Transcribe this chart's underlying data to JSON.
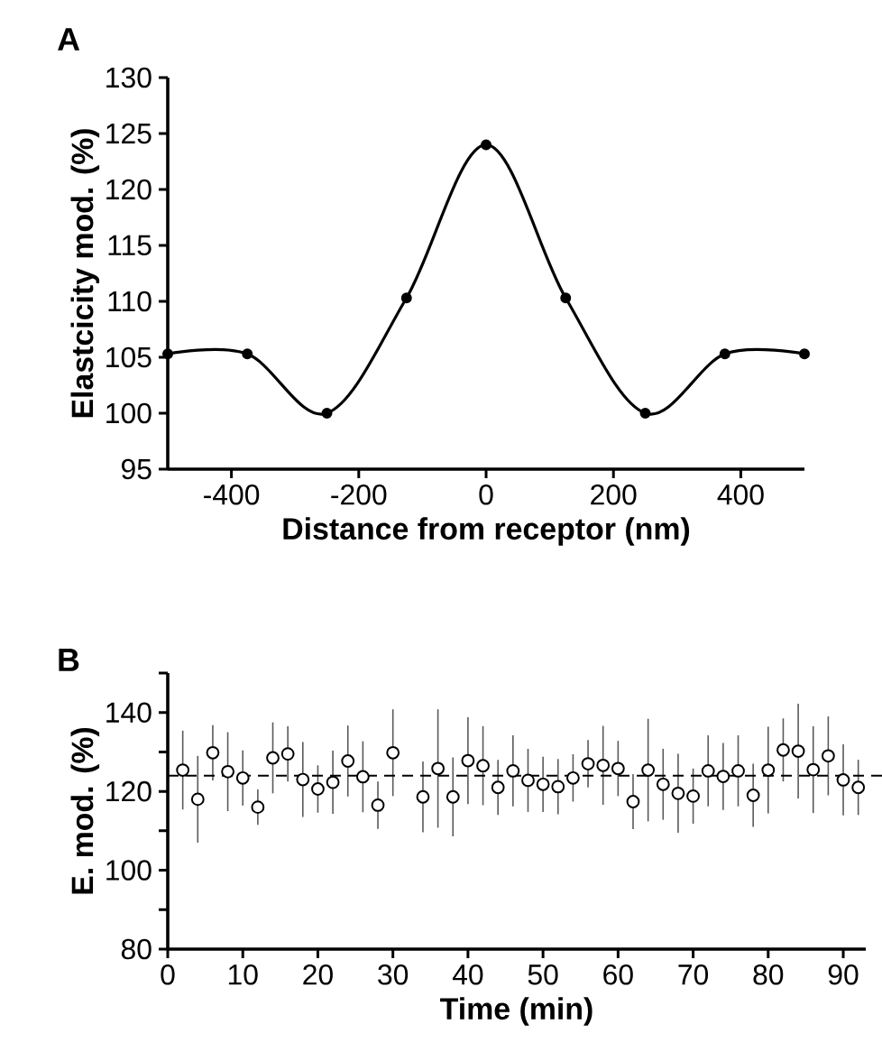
{
  "chart_data": [
    {
      "type": "line",
      "title": "A",
      "xlabel": "Distance from receptor (nm)",
      "ylabel": "Elastcicity mod. (%)",
      "x": [
        -500,
        -375,
        -250,
        -125,
        0,
        125,
        250,
        375,
        500
      ],
      "series": [
        {
          "color": "#000000",
          "values": [
            105.3,
            105.3,
            100,
            110.3,
            124,
            110.3,
            100,
            105.3,
            105.3
          ]
        }
      ],
      "marker": "circle",
      "line_style": "solid",
      "xlim": [
        -500,
        500
      ],
      "xticks": [
        -400,
        -200,
        0,
        200,
        400
      ],
      "ylim": [
        95,
        130
      ],
      "yticks": [
        95,
        100,
        105,
        110,
        115,
        120,
        125,
        130
      ]
    },
    {
      "type": "scatter",
      "title": "B",
      "xlabel": "Time (min)",
      "ylabel": "E. mod. (%)",
      "x": [
        2,
        4,
        6,
        8,
        10,
        12,
        14,
        16,
        18,
        20,
        22,
        24,
        26,
        28,
        30,
        34,
        36,
        38,
        40,
        42,
        44,
        46,
        48,
        50,
        52,
        54,
        56,
        58,
        60,
        62,
        64,
        66,
        68,
        70,
        72,
        74,
        76,
        78,
        80,
        82,
        84,
        86,
        88,
        90,
        92
      ],
      "series": [
        {
          "color": "#000000",
          "values": [
            125.4,
            118,
            129.8,
            125,
            123.4,
            116,
            128.5,
            129.5,
            123,
            120.6,
            122.3,
            127.7,
            123.7,
            116.5,
            129.8,
            118.6,
            125.8,
            118.6,
            127.8,
            126.5,
            121,
            125.2,
            122.8,
            121.8,
            121.2,
            123.4,
            127,
            126.6,
            125.8,
            117.4,
            125.4,
            121.8,
            119.5,
            118.8,
            125.2,
            123.8,
            125.2,
            119,
            125.4,
            130.5,
            130.2,
            125.5,
            129,
            122.9,
            121
          ],
          "errors": [
            10,
            11,
            7,
            10,
            7,
            4.5,
            9,
            7,
            9.5,
            6,
            8,
            9,
            9,
            6,
            11,
            9,
            15,
            10,
            11,
            10,
            7,
            9,
            8,
            7,
            7,
            6,
            6,
            10,
            7,
            7,
            13,
            9,
            10,
            7,
            9,
            8.5,
            9,
            8,
            11,
            8,
            12,
            11,
            10,
            9,
            7
          ]
        }
      ],
      "marker": "circle",
      "ref_lines": [
        {
          "axis": "y",
          "value": 124,
          "line_style": "dashed"
        }
      ],
      "xlim": [
        0,
        93
      ],
      "xticks": [
        0,
        10,
        20,
        30,
        40,
        50,
        60,
        70,
        80,
        90
      ],
      "ylim": [
        80,
        150
      ],
      "yticks": [
        80,
        {
          "value": 90,
          "label": null
        },
        100,
        {
          "value": 110,
          "label": null
        },
        120,
        {
          "value": 130,
          "label": null
        },
        140,
        {
          "value": 150,
          "label": null
        }
      ]
    }
  ]
}
